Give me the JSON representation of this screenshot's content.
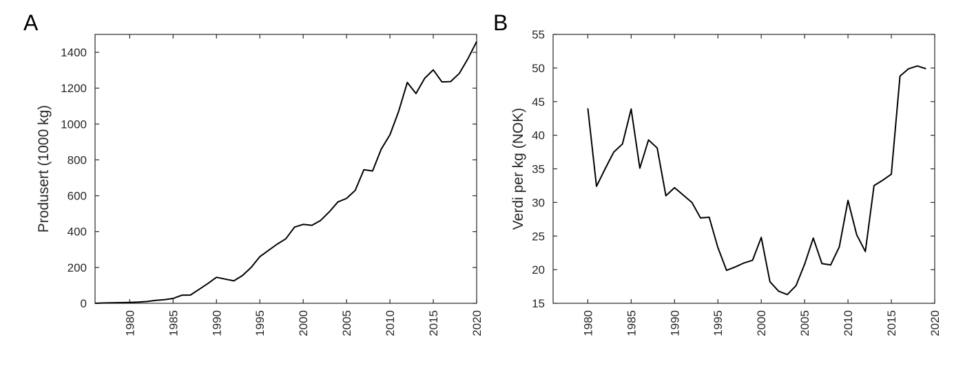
{
  "chart_data": [
    {
      "type": "line",
      "panel": "A",
      "xlabel": "",
      "ylabel": "Produsert (1000 kg)",
      "xlim": [
        1976,
        2020
      ],
      "ylim": [
        0,
        1500
      ],
      "xticks": [
        1980,
        1985,
        1990,
        1995,
        2000,
        2005,
        2010,
        2015,
        2020
      ],
      "yticks": [
        0,
        200,
        400,
        600,
        800,
        1000,
        1200,
        1400
      ],
      "grid": false,
      "series": [
        {
          "x": [
            1976,
            1977,
            1978,
            1979,
            1980,
            1981,
            1982,
            1983,
            1984,
            1985,
            1986,
            1987,
            1988,
            1989,
            1990,
            1991,
            1992,
            1993,
            1994,
            1995,
            1996,
            1997,
            1998,
            1999,
            2000,
            2001,
            2002,
            2003,
            2004,
            2005,
            2006,
            2007,
            2008,
            2009,
            2010,
            2011,
            2012,
            2013,
            2014,
            2015,
            2016,
            2017,
            2018,
            2019,
            2020
          ],
          "values": [
            0,
            2,
            3,
            4,
            5,
            7,
            10,
            16,
            20,
            27,
            45,
            46,
            78,
            110,
            145,
            135,
            125,
            155,
            200,
            260,
            295,
            330,
            360,
            425,
            440,
            435,
            462,
            510,
            565,
            585,
            630,
            745,
            738,
            860,
            940,
            1070,
            1232,
            1170,
            1255,
            1302,
            1235,
            1237,
            1282,
            1365,
            1460
          ]
        }
      ]
    },
    {
      "type": "line",
      "panel": "B",
      "xlabel": "",
      "ylabel": "Verdi per kg (NOK)",
      "xlim": [
        1976,
        2020
      ],
      "ylim": [
        15,
        55
      ],
      "xticks": [
        1980,
        1985,
        1990,
        1995,
        2000,
        2005,
        2010,
        2015,
        2020
      ],
      "yticks": [
        15,
        20,
        25,
        30,
        35,
        40,
        45,
        50,
        55
      ],
      "grid": false,
      "series": [
        {
          "x": [
            1980,
            1981,
            1982,
            1983,
            1984,
            1985,
            1986,
            1987,
            1988,
            1989,
            1990,
            1991,
            1992,
            1993,
            1994,
            1995,
            1996,
            1997,
            1998,
            1999,
            2000,
            2001,
            2002,
            2003,
            2004,
            2005,
            2006,
            2007,
            2008,
            2009,
            2010,
            2011,
            2012,
            2013,
            2014,
            2015,
            2016,
            2017,
            2018,
            2019
          ],
          "values": [
            44,
            32.4,
            35,
            37.5,
            38.7,
            43.9,
            35.1,
            39.3,
            38.1,
            31,
            32.2,
            31.1,
            30,
            27.7,
            27.8,
            23.3,
            19.9,
            20.4,
            21,
            21.4,
            24.8,
            18.2,
            16.8,
            16.3,
            17.6,
            20.8,
            24.7,
            20.9,
            20.7,
            23.4,
            30.3,
            25.2,
            22.7,
            32.5,
            33.3,
            34.2,
            48.8,
            49.9,
            50.3,
            49.9
          ]
        }
      ]
    }
  ]
}
